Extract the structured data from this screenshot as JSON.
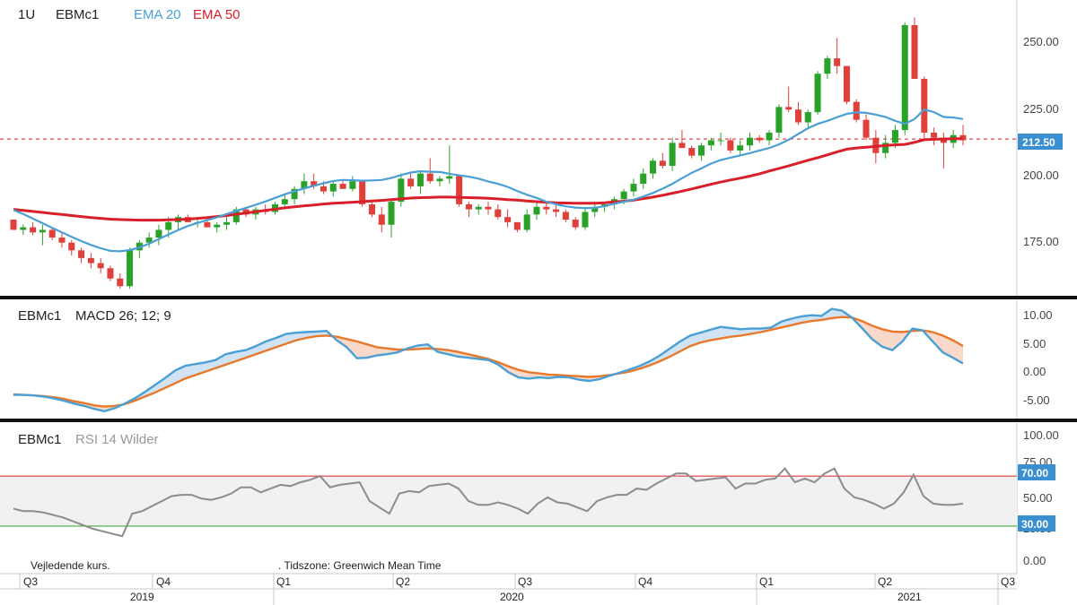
{
  "header": {
    "interval": "1U",
    "symbol": "EBMc1",
    "ema20_label": "EMA 20",
    "ema50_label": "EMA 50"
  },
  "macd_header": {
    "symbol": "EBMc1",
    "label": "MACD 26; 12; 9"
  },
  "rsi_header": {
    "symbol": "EBMc1",
    "label": "RSI 14 Wilder"
  },
  "footer": {
    "note_left": "Vejledende kurs.",
    "note_right": ".   Tidszone: Greenwich Mean Time",
    "quarters": [
      "Q3",
      "Q4",
      "Q1",
      "Q2",
      "Q3",
      "Q4",
      "Q1",
      "Q2",
      "Q3"
    ],
    "years": [
      "2019",
      "2020",
      "2021"
    ]
  },
  "colors": {
    "up": "#2aa22a",
    "down": "#e0403a",
    "ema20": "#4a9fd4",
    "ema50": "#d9202a",
    "macd": "#4a9fd4",
    "signal": "#e8782a",
    "rsi": "#8c8c8c",
    "rsi70": "#d9202a",
    "rsi30": "#2aa22a",
    "badge": "#3a8fd0"
  },
  "chart_data": [
    {
      "type": "candlestick",
      "title": "EBMc1",
      "last_price_label": "212.50",
      "last_price": 212.5,
      "y_ticks": [
        "250.00",
        "225.00",
        "200.00",
        "175.00"
      ],
      "ylim": [
        153,
        264
      ],
      "series": [
        {
          "name": "EMA 20",
          "values": [
            184.8,
            183.2,
            181.4,
            179.6,
            177.8,
            176.0,
            174.3,
            172.6,
            171.1,
            169.8,
            168.8,
            168.6,
            169.1,
            170.1,
            171.6,
            173.4,
            175.2,
            176.9,
            178.5,
            179.7,
            180.8,
            181.9,
            183.2,
            184.4,
            185.6,
            186.8,
            188.1,
            189.5,
            190.9,
            192.1,
            193.2,
            194.2,
            195.2,
            196.1,
            196.5,
            196.4,
            196.2,
            196.3,
            196.5,
            197.3,
            198.4,
            199.4,
            199.9,
            199.7,
            199.6,
            198.9,
            198.3,
            197.8,
            197.0,
            195.9,
            195.0,
            193.8,
            192.2,
            190.7,
            189.5,
            188.0,
            187.0,
            186.2,
            185.7,
            185.5,
            185.6,
            186.3,
            187.2,
            188.0,
            188.8,
            190.0,
            191.4,
            193.1,
            195.0,
            197.2,
            199.3,
            201.0,
            202.9,
            204.3,
            205.2,
            206.1,
            207.0,
            208.0,
            209.0,
            210.4,
            212.2,
            214.5,
            216.7,
            218.4,
            219.6,
            221.0,
            222.3,
            222.9,
            222.7,
            222.0,
            221.1,
            219.6,
            218.4,
            220.3,
            224.0,
            223.0,
            221.1,
            220.9,
            220.3
          ]
        },
        {
          "name": "EMA 50",
          "values": [
            185.0,
            184.6,
            184.2,
            183.8,
            183.4,
            183.0,
            182.6,
            182.2,
            181.8,
            181.5,
            181.2,
            181.0,
            180.9,
            180.8,
            180.8,
            180.8,
            180.9,
            181.0,
            181.2,
            181.5,
            181.8,
            182.2,
            182.6,
            183.1,
            183.6,
            184.1,
            184.6,
            185.1,
            185.6,
            186.0,
            186.4,
            186.7,
            187.1,
            187.4,
            187.6,
            187.8,
            188.0,
            188.3,
            188.5,
            188.8,
            189.1,
            189.4,
            189.6,
            189.7,
            189.8,
            189.8,
            189.7,
            189.6,
            189.5,
            189.3,
            189.1,
            188.8,
            188.6,
            188.3,
            188.0,
            187.8,
            187.6,
            187.5,
            187.4,
            187.4,
            187.4,
            187.6,
            187.9,
            188.2,
            188.6,
            189.2,
            189.8,
            190.5,
            191.3,
            192.1,
            193.0,
            193.9,
            194.8,
            195.7,
            196.5,
            197.2,
            198.0,
            198.9,
            200.0,
            201.0,
            202.0,
            203.1,
            204.2,
            205.2,
            206.3,
            207.5,
            208.5,
            209.0,
            209.3,
            209.6,
            210.0,
            210.2,
            210.4,
            211.2,
            212.2,
            212.4,
            212.5,
            212.6,
            212.6
          ]
        }
      ],
      "candles": [
        [
          181,
          181,
          177,
          177
        ],
        [
          177,
          179,
          175,
          178
        ],
        [
          178,
          180,
          175,
          176
        ],
        [
          176,
          179,
          171,
          177
        ],
        [
          177,
          178,
          173,
          174
        ],
        [
          174,
          176,
          170,
          172
        ],
        [
          172,
          173,
          167,
          169
        ],
        [
          169,
          170,
          164,
          166
        ],
        [
          166,
          168,
          162,
          164
        ],
        [
          164,
          166,
          160,
          162
        ],
        [
          162,
          163,
          157,
          158
        ],
        [
          158,
          160,
          154,
          155
        ],
        [
          155,
          170,
          154,
          169
        ],
        [
          169,
          173,
          166,
          172
        ],
        [
          172,
          176,
          170,
          174
        ],
        [
          174,
          179,
          171,
          177
        ],
        [
          177,
          182,
          174,
          180
        ],
        [
          180,
          183,
          177,
          182
        ],
        [
          182,
          183,
          180,
          180
        ],
        [
          180,
          182,
          178,
          180
        ],
        [
          180,
          181,
          178,
          178
        ],
        [
          178,
          180,
          176,
          179
        ],
        [
          179,
          182,
          177,
          180
        ],
        [
          180,
          186,
          179,
          185
        ],
        [
          185,
          186,
          182,
          183
        ],
        [
          183,
          186,
          181,
          185
        ],
        [
          185,
          187,
          183,
          184
        ],
        [
          184,
          188,
          183,
          187
        ],
        [
          187,
          191,
          185,
          189
        ],
        [
          189,
          194,
          187,
          193
        ],
        [
          193,
          199,
          191,
          196
        ],
        [
          196,
          199,
          193,
          194
        ],
        [
          194,
          196,
          191,
          192
        ],
        [
          192,
          196,
          190,
          195
        ],
        [
          195,
          196,
          193,
          193
        ],
        [
          193,
          198,
          192,
          196
        ],
        [
          196,
          196,
          186,
          187
        ],
        [
          187,
          188,
          182,
          183
        ],
        [
          183,
          186,
          176,
          179
        ],
        [
          179,
          189,
          174,
          188
        ],
        [
          188,
          199,
          186,
          197
        ],
        [
          197,
          199,
          193,
          194
        ],
        [
          194,
          200,
          191,
          199
        ],
        [
          199,
          205,
          195,
          196
        ],
        [
          196,
          198,
          194,
          197
        ],
        [
          197,
          210,
          195,
          198
        ],
        [
          198,
          198,
          186,
          187
        ],
        [
          187,
          188,
          182,
          185
        ],
        [
          185,
          187,
          183,
          186
        ],
        [
          186,
          188,
          183,
          185
        ],
        [
          185,
          187,
          181,
          182
        ],
        [
          182,
          185,
          178,
          180
        ],
        [
          180,
          180,
          176,
          177
        ],
        [
          177,
          185,
          176,
          183
        ],
        [
          183,
          188,
          181,
          186
        ],
        [
          186,
          188,
          183,
          185
        ],
        [
          185,
          188,
          182,
          184
        ],
        [
          184,
          185,
          180,
          181
        ],
        [
          181,
          182,
          177,
          178
        ],
        [
          178,
          186,
          177,
          184
        ],
        [
          184,
          188,
          182,
          186
        ],
        [
          186,
          188,
          184,
          187
        ],
        [
          187,
          190,
          185,
          189
        ],
        [
          189,
          193,
          187,
          192
        ],
        [
          192,
          197,
          190,
          195
        ],
        [
          195,
          201,
          193,
          199
        ],
        [
          199,
          205,
          197,
          204
        ],
        [
          204,
          207,
          201,
          202
        ],
        [
          202,
          213,
          200,
          211
        ],
        [
          211,
          216,
          209,
          209
        ],
        [
          209,
          210,
          205,
          206
        ],
        [
          206,
          211,
          204,
          210
        ],
        [
          210,
          213,
          208,
          212
        ],
        [
          212,
          215,
          210,
          212
        ],
        [
          212,
          213,
          207,
          208
        ],
        [
          208,
          212,
          206,
          210
        ],
        [
          210,
          215,
          208,
          213
        ],
        [
          213,
          214,
          211,
          212
        ],
        [
          212,
          216,
          210,
          215
        ],
        [
          215,
          226,
          213,
          225
        ],
        [
          225,
          233,
          223,
          224
        ],
        [
          224,
          227,
          218,
          219
        ],
        [
          219,
          224,
          217,
          223
        ],
        [
          223,
          239,
          222,
          238
        ],
        [
          238,
          245,
          236,
          244
        ],
        [
          244,
          252,
          238,
          241
        ],
        [
          241,
          241,
          226,
          227
        ],
        [
          227,
          228,
          219,
          220
        ],
        [
          220,
          222,
          212,
          213
        ],
        [
          213,
          216,
          203,
          207
        ],
        [
          207,
          214,
          205,
          211
        ],
        [
          211,
          218,
          209,
          216
        ],
        [
          216,
          258,
          214,
          257
        ],
        [
          257,
          260,
          236,
          236
        ],
        [
          236,
          237,
          212,
          215
        ],
        [
          215,
          217,
          210,
          213
        ],
        [
          213,
          215,
          201,
          211
        ],
        [
          211,
          216,
          209,
          214
        ],
        [
          214,
          218,
          210,
          212
        ]
      ]
    },
    {
      "type": "line",
      "title": "MACD 26; 12; 9",
      "y_ticks": [
        "10.00",
        "5.00",
        "0.00",
        "-5.00"
      ],
      "ylim": [
        -7.5,
        11
      ],
      "series": [
        {
          "name": "MACD",
          "values": [
            -4.2,
            -4.2,
            -4.3,
            -4.5,
            -4.8,
            -5.2,
            -5.7,
            -6.1,
            -6.6,
            -7.0,
            -6.5,
            -5.7,
            -4.8,
            -3.7,
            -2.5,
            -1.3,
            0.0,
            0.8,
            1.1,
            1.4,
            1.8,
            2.8,
            3.2,
            3.5,
            4.2,
            5.0,
            5.6,
            6.3,
            6.5,
            6.6,
            6.7,
            6.8,
            5.2,
            4.0,
            2.1,
            2.2,
            2.6,
            2.8,
            3.1,
            3.8,
            4.3,
            4.5,
            3.2,
            2.8,
            2.4,
            2.2,
            2.0,
            1.8,
            1.0,
            -0.3,
            -1.2,
            -1.4,
            -1.2,
            -1.3,
            -1.1,
            -1.2,
            -1.6,
            -1.8,
            -1.5,
            -0.9,
            -0.4,
            0.2,
            0.8,
            1.6,
            2.6,
            3.8,
            5.0,
            6.0,
            6.5,
            7.0,
            7.5,
            7.3,
            7.1,
            7.2,
            7.2,
            7.4,
            8.4,
            8.9,
            9.3,
            9.5,
            9.4,
            10.6,
            10.3,
            9.1,
            7.3,
            5.4,
            4.1,
            3.5,
            5.0,
            7.2,
            6.9,
            5.0,
            3.1,
            2.2,
            1.2
          ]
        },
        {
          "name": "Signal",
          "values": [
            -4.1,
            -4.2,
            -4.3,
            -4.4,
            -4.6,
            -4.9,
            -5.3,
            -5.6,
            -6.0,
            -6.2,
            -6.1,
            -5.8,
            -5.2,
            -4.5,
            -3.8,
            -3.0,
            -2.2,
            -1.4,
            -0.8,
            -0.2,
            0.4,
            1.0,
            1.6,
            2.2,
            2.8,
            3.4,
            4.0,
            4.6,
            5.2,
            5.6,
            5.9,
            6.0,
            5.8,
            5.4,
            5.0,
            4.5,
            4.0,
            3.8,
            3.6,
            3.6,
            3.7,
            3.8,
            3.7,
            3.5,
            3.2,
            2.8,
            2.4,
            2.0,
            1.4,
            0.7,
            0.1,
            -0.3,
            -0.5,
            -0.7,
            -0.8,
            -0.9,
            -1.0,
            -1.1,
            -1.0,
            -0.8,
            -0.5,
            -0.2,
            0.3,
            0.9,
            1.6,
            2.4,
            3.3,
            4.2,
            4.8,
            5.2,
            5.5,
            5.8,
            6.0,
            6.3,
            6.6,
            7.0,
            7.4,
            7.8,
            8.2,
            8.5,
            8.7,
            9.0,
            9.2,
            9.1,
            8.5,
            7.7,
            7.1,
            6.7,
            6.6,
            6.8,
            6.9,
            6.6,
            6.0,
            5.2,
            4.2
          ]
        }
      ]
    },
    {
      "type": "line",
      "title": "RSI 14 Wilder",
      "y_ticks": [
        "100.00",
        "75.00",
        "50.00",
        "25.00",
        "0.00"
      ],
      "ylim": [
        -5,
        108
      ],
      "levels": [
        {
          "label": "70.00",
          "value": 70
        },
        {
          "label": "30.00",
          "value": 30
        }
      ],
      "series": [
        {
          "name": "RSI",
          "values": [
            44,
            42,
            42,
            41,
            39,
            37,
            34,
            31,
            28,
            26,
            24,
            22,
            40,
            42,
            46,
            50,
            54,
            55,
            55,
            52,
            51,
            53,
            56,
            61,
            61,
            57,
            60,
            63,
            62,
            65,
            67,
            70,
            61,
            63,
            64,
            65,
            50,
            45,
            40,
            56,
            58,
            57,
            62,
            63,
            64,
            60,
            50,
            47,
            47,
            49,
            47,
            44,
            40,
            48,
            53,
            49,
            48,
            45,
            42,
            50,
            53,
            55,
            55,
            60,
            59,
            64,
            68,
            72,
            72,
            66,
            67,
            68,
            69,
            60,
            64,
            64,
            67,
            68,
            76,
            65,
            68,
            65,
            72,
            76,
            60,
            53,
            51,
            48,
            44,
            48,
            57,
            71,
            54,
            48,
            47,
            47,
            48
          ]
        }
      ]
    }
  ]
}
